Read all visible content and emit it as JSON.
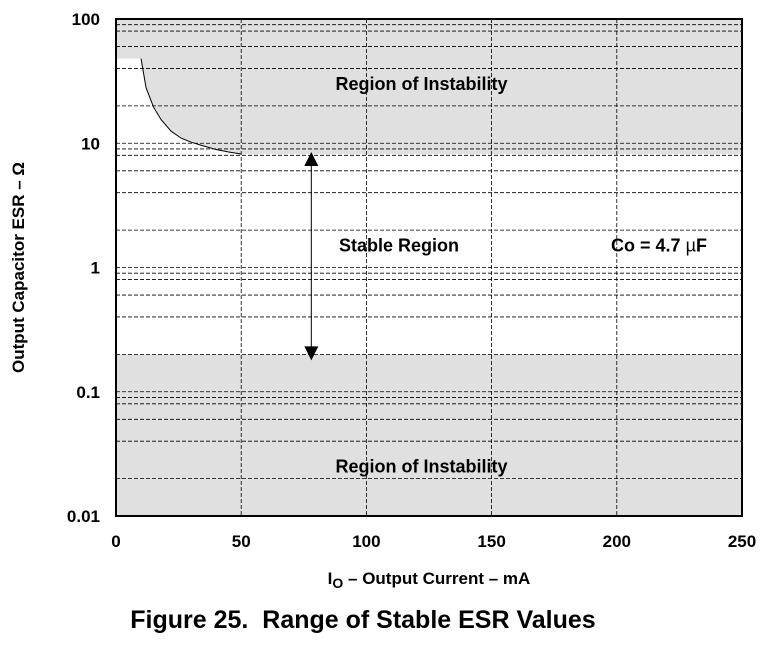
{
  "chart_data": {
    "type": "area",
    "caption": "Figure 25.  Range of Stable ESR Values",
    "xlabel": {
      "prefix": "I",
      "subscript": "O",
      "rest": " – Output Current – mA"
    },
    "ylabel": "Output Capacitor ESR – Ω",
    "x_scale": "linear",
    "y_scale": "log",
    "xlim": [
      0,
      250
    ],
    "ylim": [
      0.01,
      100
    ],
    "x_ticks": [
      0,
      50,
      100,
      150,
      200,
      250
    ],
    "x_tick_labels": [
      "0",
      "50",
      "100",
      "150",
      "200",
      "250"
    ],
    "y_ticks": [
      0.01,
      0.1,
      1,
      10,
      100
    ],
    "y_tick_labels": [
      "0.01",
      "0.1",
      "1",
      "10",
      "100"
    ],
    "grid": true,
    "colors": {
      "unstable_region_fill": "#e0e0e0",
      "stable_region_fill": "#ffffff",
      "grid": "#000000",
      "boundary": "#000000"
    },
    "regions": [
      {
        "name": "upper-instability",
        "label": "Region of Instability",
        "label_x": 122,
        "label_y": 30,
        "upper_bound_x": [
          10,
          12,
          15,
          18,
          22,
          26,
          30,
          35,
          40,
          45,
          50,
          250
        ],
        "upper_bound_y": [
          48,
          28,
          19.5,
          15.5,
          12.5,
          11,
          10.2,
          9.5,
          8.9,
          8.5,
          8.2,
          8.2
        ]
      },
      {
        "name": "stable",
        "label": "Stable Region",
        "label_x": 113,
        "label_y": 1.5
      },
      {
        "name": "lower-instability",
        "label": "Region of Instability",
        "label_x": 122,
        "label_y": 0.025,
        "top_y": 0.2
      }
    ],
    "annotations": [
      {
        "type": "text",
        "text_prefix": "Co = 4.7 ",
        "text_mu": "µ",
        "text_unit": "F",
        "x": 236,
        "y": 1.5
      },
      {
        "type": "double-arrow",
        "x": 78,
        "y_from": 8.5,
        "y_to": 0.2
      }
    ]
  }
}
